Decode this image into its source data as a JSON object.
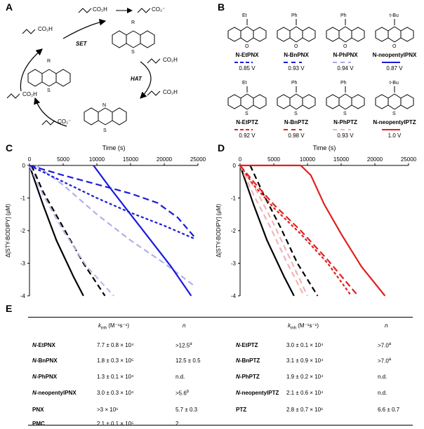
{
  "panels": {
    "a": "A",
    "b": "B",
    "c": "C",
    "d": "D",
    "e": "E"
  },
  "scheme_a": {
    "acid1": "CO₂H",
    "acid2": "CO₂⁻",
    "set_label": "SET",
    "hat_label": "HAT",
    "radical_acid": "CO₂H",
    "alkene_acid": "CO₂H",
    "product_anion": "CO₂⁻",
    "product_acid": "CO₂H",
    "r_label": "R",
    "n_label": "N",
    "s_label": "S"
  },
  "molecules": [
    {
      "name": "N-EtPNX",
      "volt": "0.85 V",
      "substituent": "Et",
      "het": "O",
      "color": "#1a1adb",
      "dash": "5,3"
    },
    {
      "name": "N-BnPNX",
      "volt": "0.93 V",
      "substituent": "Ph",
      "het": "O",
      "color": "#1a1adb",
      "dash": "6,5"
    },
    {
      "name": "N-PhPNX",
      "volt": "0.94 V",
      "substituent": "Ph",
      "het": "O",
      "color": "#a9a9e8",
      "dash": "6,5"
    },
    {
      "name": "N-neopentylPNX",
      "volt": "0.87 V",
      "substituent": "t-Bu",
      "het": "O",
      "color": "#1a1adb",
      "dash": ""
    },
    {
      "name": "N-EtPTZ",
      "volt": "0.92 V",
      "substituent": "Et",
      "het": "S",
      "color": "#e0201e",
      "dash": "5,3"
    },
    {
      "name": "N-BnPTZ",
      "volt": "0.98 V",
      "substituent": "Ph",
      "het": "S",
      "color": "#e0201e",
      "dash": "6,5"
    },
    {
      "name": "N-PhPTZ",
      "volt": "0.93 V",
      "substituent": "Ph",
      "het": "S",
      "color": "#f2b3b3",
      "dash": "6,5"
    },
    {
      "name": "N-neopentylPTZ",
      "volt": "1.0 V",
      "substituent": "t-Bu",
      "het": "S",
      "color": "#e0201e",
      "dash": ""
    }
  ],
  "chart_data": [
    {
      "type": "line",
      "panel": "C",
      "xlabel": "Time (s)",
      "ylabel": "Δ[STY-BODIPY] (μM)",
      "xlim": [
        0,
        25000
      ],
      "ylim": [
        -4,
        0
      ],
      "xticks": [
        "0",
        "5000",
        "10000",
        "15000",
        "20000",
        "25000"
      ],
      "yticks": [
        "0",
        "-1",
        "-2",
        "-3",
        "-4"
      ],
      "series": [
        {
          "color": "#000000",
          "dash": "",
          "x": [
            0,
            2000,
            4000,
            6500,
            8000
          ],
          "y": [
            0,
            -1.2,
            -2.3,
            -3.4,
            -4.0
          ]
        },
        {
          "color": "#000000",
          "dash": "8,5",
          "x": [
            300,
            2000,
            5000,
            8000,
            11200
          ],
          "y": [
            0,
            -0.8,
            -1.9,
            -3.0,
            -4.0
          ]
        },
        {
          "color": "#c0b8e8",
          "dash": "8,5",
          "x": [
            0,
            2000,
            5000,
            8500,
            12500
          ],
          "y": [
            0,
            -0.9,
            -2.0,
            -3.1,
            -4.0
          ]
        },
        {
          "color": "#b0b0ea",
          "dash": "8,5",
          "x": [
            1000,
            5000,
            10000,
            15000,
            20000,
            24500
          ],
          "y": [
            0,
            -0.6,
            -1.5,
            -2.3,
            -3.0,
            -3.7
          ]
        },
        {
          "color": "#1a1adb",
          "dash": "4,3",
          "x": [
            0,
            5000,
            10000,
            15000,
            20000,
            24500
          ],
          "y": [
            0,
            -0.5,
            -1.0,
            -1.45,
            -1.85,
            -2.25
          ]
        },
        {
          "color": "#1a1adb",
          "dash": "9,5",
          "x": [
            0,
            5000,
            10000,
            15000,
            19000,
            22000,
            24500
          ],
          "y": [
            0,
            -0.3,
            -0.58,
            -0.86,
            -1.15,
            -1.6,
            -2.2
          ]
        },
        {
          "color": "#1a1adb",
          "dash": "",
          "x": [
            9500,
            12000,
            15000,
            18000,
            21000,
            24000
          ],
          "y": [
            0,
            -0.7,
            -1.5,
            -2.3,
            -3.1,
            -4.0
          ]
        }
      ]
    },
    {
      "type": "line",
      "panel": "D",
      "xlabel": "Time (s)",
      "ylabel": "Δ[STY-BODIPY] (μM)",
      "xlim": [
        0,
        25000
      ],
      "ylim": [
        -4,
        0
      ],
      "xticks": [
        "0",
        "5000",
        "10000",
        "15000",
        "20000",
        "25000"
      ],
      "yticks": [
        "0",
        "-1",
        "-2",
        "-3",
        "-4"
      ],
      "series": [
        {
          "color": "#000000",
          "dash": "",
          "x": [
            0,
            2000,
            4000,
            6500,
            8000
          ],
          "y": [
            0,
            -1.2,
            -2.3,
            -3.4,
            -4.0
          ]
        },
        {
          "color": "#000000",
          "dash": "8,5",
          "x": [
            1500,
            3500,
            6000,
            8500,
            11500
          ],
          "y": [
            0,
            -0.9,
            -1.9,
            -3.0,
            -4.0
          ]
        },
        {
          "color": "#f2b3b3",
          "dash": "8,5",
          "x": [
            0,
            2000,
            4500,
            7000,
            9500
          ],
          "y": [
            0,
            -0.9,
            -1.9,
            -3.0,
            -4.0
          ]
        },
        {
          "color": "#f2b3b3",
          "dash": "8,5",
          "x": [
            0,
            2500,
            5000,
            7500,
            10000
          ],
          "y": [
            0,
            -0.8,
            -1.8,
            -2.9,
            -4.0
          ]
        },
        {
          "color": "#e0201e",
          "dash": "4,3",
          "x": [
            0,
            2000,
            5000,
            9000,
            13000,
            16500
          ],
          "y": [
            0,
            -0.6,
            -1.3,
            -2.1,
            -3.0,
            -4.0
          ]
        },
        {
          "color": "#e0201e",
          "dash": "9,5",
          "x": [
            0,
            2000,
            5000,
            9000,
            13000,
            17500
          ],
          "y": [
            0,
            -0.5,
            -1.2,
            -2.0,
            -2.9,
            -4.0
          ]
        },
        {
          "color": "#e0201e",
          "dash": "",
          "x": [
            0,
            9000,
            10500,
            12500,
            15000,
            18000,
            21500
          ],
          "y": [
            0,
            0,
            -0.3,
            -1.2,
            -2.1,
            -3.1,
            -4.0
          ]
        }
      ]
    }
  ],
  "table": {
    "headers": {
      "kinh": "k",
      "kinh_sub": "inh",
      "kinh_units": " (M⁻¹s⁻¹)",
      "n": "n"
    },
    "left_rows": [
      {
        "name": "N-EtPNX",
        "prefix": "N",
        "rest": "-EtPNX",
        "k": "7.7 ± 0.8 × 10⁴",
        "n": ">12.5",
        "sup": "a"
      },
      {
        "name": "N-BnPNX",
        "prefix": "N",
        "rest": "-BnPNX",
        "k": "1.8 ± 0.3 × 10⁵",
        "n": "12.5 ± 0.5",
        "sup": ""
      },
      {
        "name": "N-PhPNX",
        "prefix": "N",
        "rest": "-PhPNX",
        "k": "1.3 ± 0.1 × 10⁴",
        "n": "n.d.",
        "sup": ""
      },
      {
        "name": "N-neopentylPNX",
        "prefix": "N",
        "rest": "-neopentylPNX",
        "k": "3.0 ± 0.3 × 10⁴",
        "n": ">5.6",
        "sup": "b"
      },
      {
        "name": "PNX",
        "prefix": "",
        "rest": "PNX",
        "k": ">3 × 10⁶",
        "n": "5.7 ± 0.3",
        "sup": ""
      },
      {
        "name": "PMC",
        "prefix": "",
        "rest": "PMC",
        "k": "2.1 ± 0.1 × 10⁵",
        "n": "2",
        "sup": ""
      }
    ],
    "right_rows": [
      {
        "name": "N-EtPTZ",
        "prefix": "N",
        "rest": "-EtPTZ",
        "k": "3.0 ± 0.1 × 10⁴",
        "n": ">7.0",
        "sup": "a"
      },
      {
        "name": "N-BnPTZ",
        "prefix": "N",
        "rest": "-BnPTZ",
        "k": "3.1 ± 0.9 × 10⁴",
        "n": ">7.0",
        "sup": "a"
      },
      {
        "name": "N-PhPTZ",
        "prefix": "N",
        "rest": "-PhPTZ",
        "k": "1.9 ± 0.2 × 10⁴",
        "n": "n.d.",
        "sup": ""
      },
      {
        "name": "N-neopentylPTZ",
        "prefix": "N",
        "rest": "-neopentylPTZ",
        "k": "2.1 ± 0.6 × 10⁴",
        "n": "n.d.",
        "sup": ""
      },
      {
        "name": "PTZ",
        "prefix": "",
        "rest": "PTZ",
        "k": "2.8 ± 0.7 × 10⁶",
        "n": "6.6 ± 0.7",
        "sup": ""
      }
    ]
  }
}
